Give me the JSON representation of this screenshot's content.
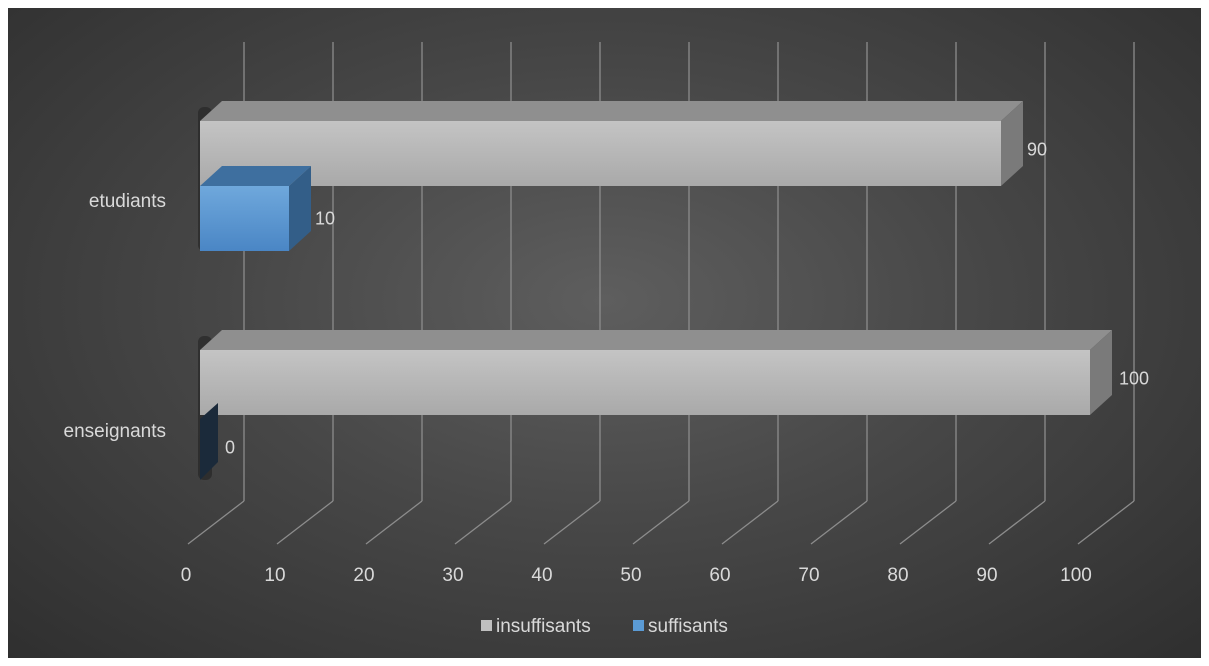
{
  "chart_data": {
    "type": "bar",
    "orientation": "horizontal",
    "three_d": true,
    "title": "",
    "xlabel": "",
    "ylabel": "",
    "categories": [
      "enseignants",
      "etudiants"
    ],
    "series": [
      {
        "name": "insuffisants",
        "values": [
          100,
          90
        ],
        "color": "#bfbfbf"
      },
      {
        "name": "suffisants",
        "values": [
          0,
          10
        ],
        "color": "#5b9bd5"
      }
    ],
    "xlim": [
      0,
      100
    ],
    "x_ticks": [
      "0",
      "10",
      "20",
      "30",
      "40",
      "50",
      "60",
      "70",
      "80",
      "90",
      "100"
    ],
    "grid": true,
    "data_labels": true,
    "legend": "bottom-center",
    "background": "#404040"
  }
}
